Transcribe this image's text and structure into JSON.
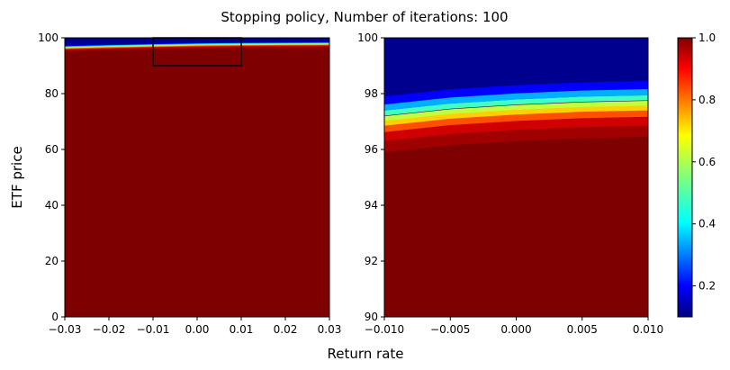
{
  "figure": {
    "title": "Stopping policy, Number of iterations: 100",
    "xlabel": "Return rate",
    "ylabel": "ETF price"
  },
  "chart_data": [
    {
      "type": "heatmap",
      "name": "full-view",
      "xlim": [
        -0.03,
        0.03
      ],
      "ylim": [
        0,
        100
      ],
      "xticks": [
        "−0.03",
        "−0.02",
        "−0.01",
        "0.00",
        "0.01",
        "0.02",
        "0.03"
      ],
      "xtick_values": [
        -0.03,
        -0.02,
        -0.01,
        0.0,
        0.01,
        0.02,
        0.03
      ],
      "yticks": [
        "0",
        "20",
        "40",
        "60",
        "80",
        "100"
      ],
      "ytick_values": [
        0,
        20,
        40,
        60,
        80,
        100
      ],
      "zoom_box": {
        "x": [
          -0.01,
          0.01
        ],
        "y": [
          90,
          100
        ]
      },
      "boundary": {
        "x": [
          -0.03,
          -0.02,
          -0.01,
          0.0,
          0.01,
          0.02,
          0.03
        ],
        "y": [
          96.5,
          96.9,
          97.2,
          97.5,
          97.65,
          97.75,
          97.8
        ]
      },
      "colormap": "jet"
    },
    {
      "type": "heatmap",
      "name": "zoom-view",
      "xlim": [
        -0.01,
        0.01
      ],
      "ylim": [
        90,
        100
      ],
      "xticks": [
        "−0.010",
        "−0.005",
        "0.000",
        "0.005",
        "0.010"
      ],
      "xtick_values": [
        -0.01,
        -0.005,
        0.0,
        0.005,
        0.01
      ],
      "yticks": [
        "90",
        "92",
        "94",
        "96",
        "98",
        "100"
      ],
      "ytick_values": [
        90,
        92,
        94,
        96,
        98,
        100
      ],
      "boundary": {
        "x": [
          -0.01,
          -0.005,
          0.0,
          0.005,
          0.01
        ],
        "y": [
          97.2,
          97.45,
          97.6,
          97.7,
          97.75
        ]
      },
      "colormap": "jet"
    }
  ],
  "colorbar": {
    "range": [
      0.1,
      1.0
    ],
    "ticks": [
      "0.2",
      "0.4",
      "0.6",
      "0.8",
      "1.0"
    ],
    "tick_values": [
      0.2,
      0.4,
      0.6,
      0.8,
      1.0
    ]
  }
}
